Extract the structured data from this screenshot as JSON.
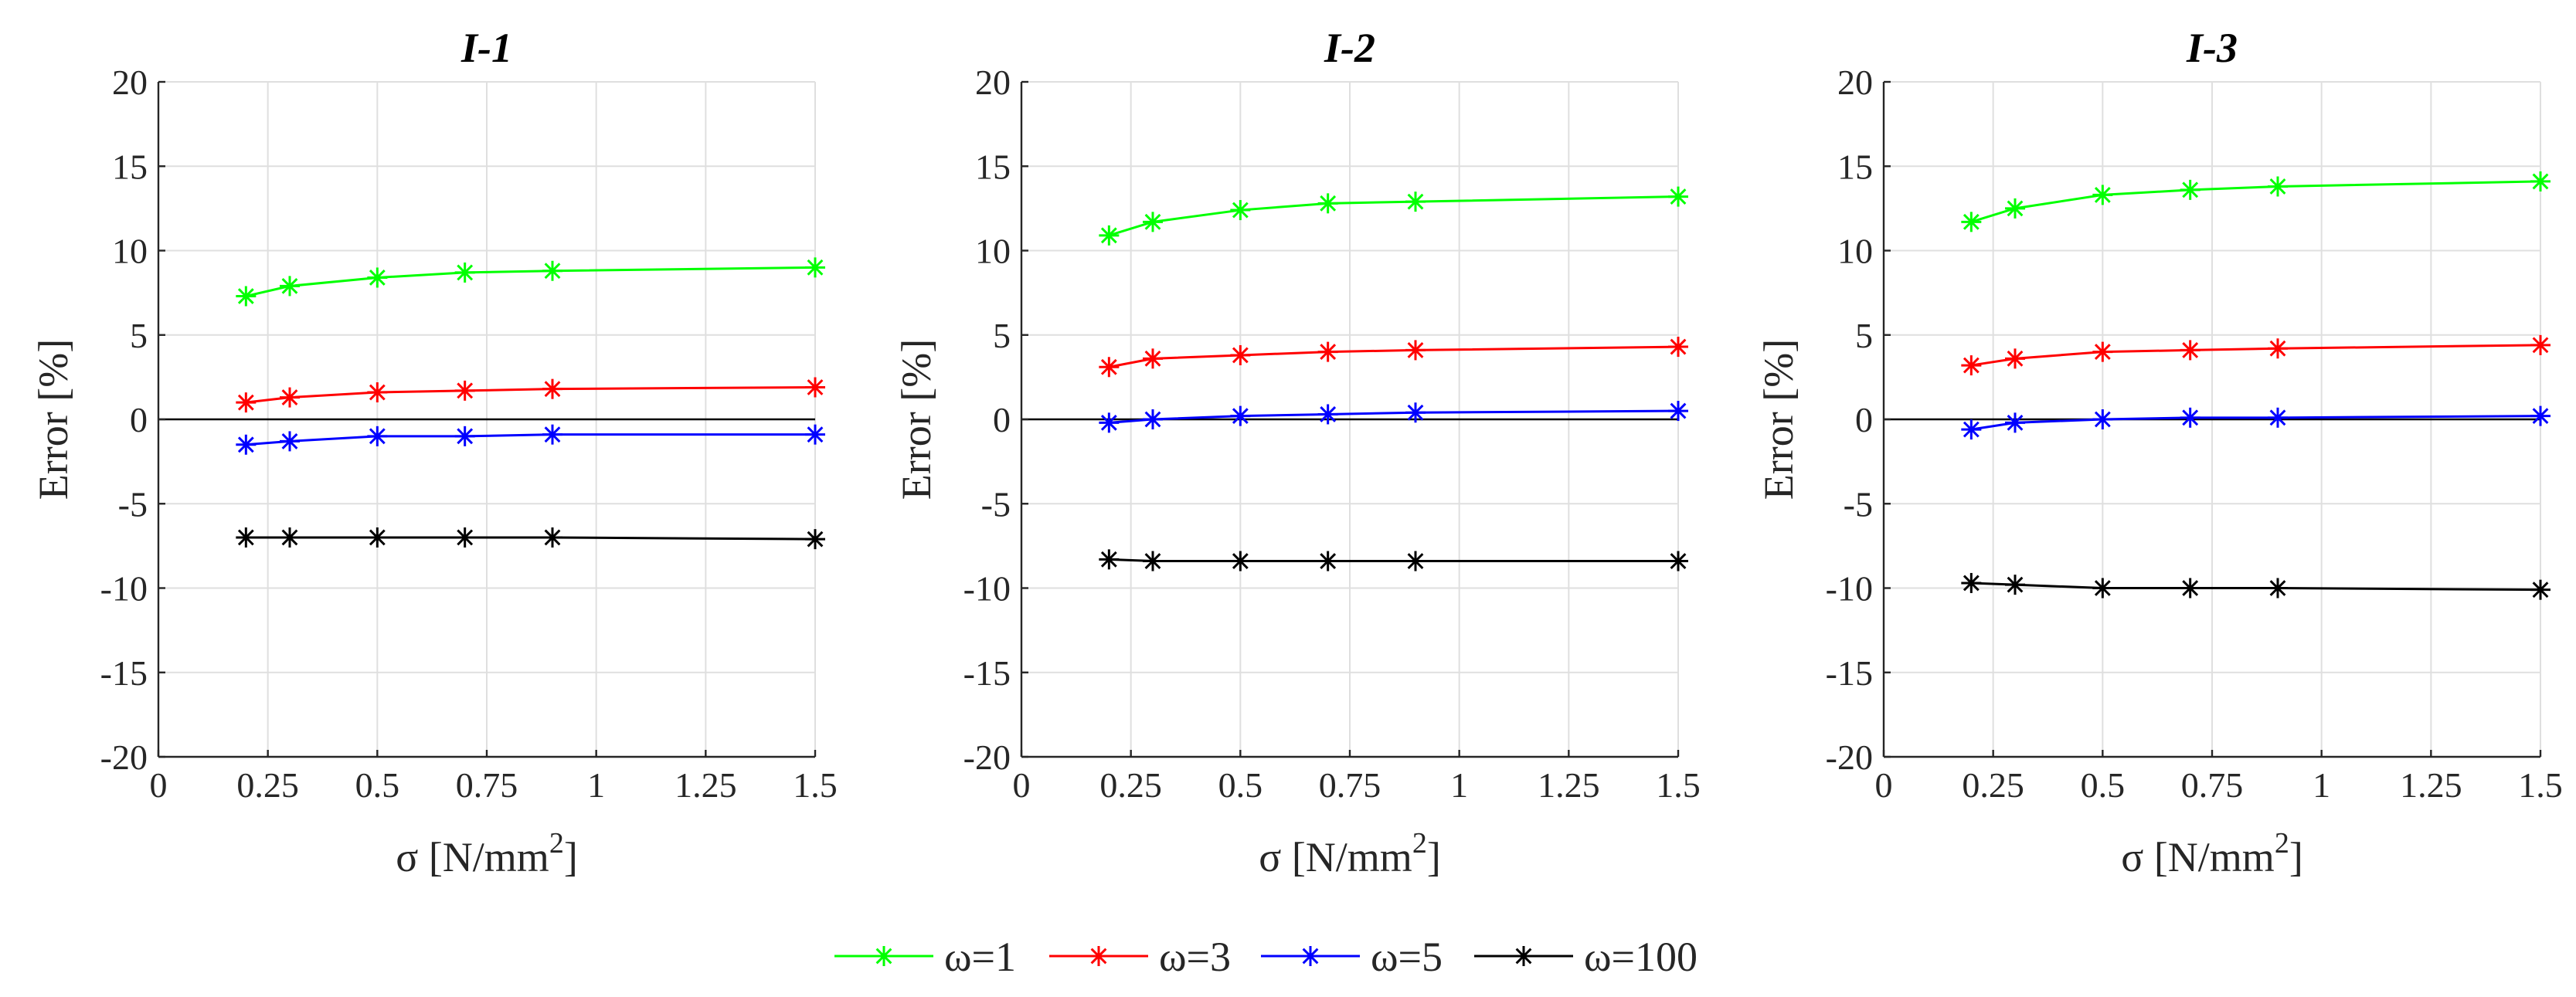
{
  "chart_data": [
    {
      "type": "line",
      "title": "I-1",
      "xlabel": "σ [N/mm2]",
      "ylabel": "Error [%]",
      "xlim": [
        0,
        1.5
      ],
      "ylim": [
        -20,
        20
      ],
      "xticks": [
        0,
        0.25,
        0.5,
        0.75,
        1,
        1.25,
        1.5
      ],
      "xtick_labels": [
        "0",
        "0.25",
        "0.5",
        "0.75",
        "1",
        "1.25",
        "1.5"
      ],
      "yticks": [
        -20,
        -15,
        -10,
        -5,
        0,
        5,
        10,
        15,
        20
      ],
      "ytick_labels": [
        "-20",
        "-15",
        "-10",
        "-5",
        "0",
        "5",
        "10",
        "15",
        "20"
      ],
      "grid": true,
      "x": [
        0.2,
        0.3,
        0.5,
        0.7,
        0.9,
        1.5
      ],
      "series": [
        {
          "name": "ω=1",
          "color": "#00ff00",
          "values": [
            7.3,
            7.9,
            8.4,
            8.7,
            8.8,
            9.0
          ]
        },
        {
          "name": "ω=3",
          "color": "#ff0000",
          "values": [
            1.0,
            1.3,
            1.6,
            1.7,
            1.8,
            1.9
          ]
        },
        {
          "name": "ω=5",
          "color": "#0000ff",
          "values": [
            -1.5,
            -1.3,
            -1.0,
            -1.0,
            -0.9,
            -0.9
          ]
        },
        {
          "name": "ω=100",
          "color": "#000000",
          "values": [
            -7.0,
            -7.0,
            -7.0,
            -7.0,
            -7.0,
            -7.1
          ]
        }
      ]
    },
    {
      "type": "line",
      "title": "I-2",
      "xlabel": "σ [N/mm2]",
      "ylabel": "Error [%]",
      "xlim": [
        0,
        1.5
      ],
      "ylim": [
        -20,
        20
      ],
      "xticks": [
        0,
        0.25,
        0.5,
        0.75,
        1,
        1.25,
        1.5
      ],
      "xtick_labels": [
        "0",
        "0.25",
        "0.5",
        "0.75",
        "1",
        "1.25",
        "1.5"
      ],
      "yticks": [
        -20,
        -15,
        -10,
        -5,
        0,
        5,
        10,
        15,
        20
      ],
      "ytick_labels": [
        "-20",
        "-15",
        "-10",
        "-5",
        "0",
        "5",
        "10",
        "15",
        "20"
      ],
      "grid": true,
      "x": [
        0.2,
        0.3,
        0.5,
        0.7,
        0.9,
        1.5
      ],
      "series": [
        {
          "name": "ω=1",
          "color": "#00ff00",
          "values": [
            10.9,
            11.7,
            12.4,
            12.8,
            12.9,
            13.2
          ]
        },
        {
          "name": "ω=3",
          "color": "#ff0000",
          "values": [
            3.1,
            3.6,
            3.8,
            4.0,
            4.1,
            4.3
          ]
        },
        {
          "name": "ω=5",
          "color": "#0000ff",
          "values": [
            -0.2,
            0.0,
            0.2,
            0.3,
            0.4,
            0.5
          ]
        },
        {
          "name": "ω=100",
          "color": "#000000",
          "values": [
            -8.3,
            -8.4,
            -8.4,
            -8.4,
            -8.4,
            -8.4
          ]
        }
      ]
    },
    {
      "type": "line",
      "title": "I-3",
      "xlabel": "σ [N/mm2]",
      "ylabel": "Error [%]",
      "xlim": [
        0,
        1.5
      ],
      "ylim": [
        -20,
        20
      ],
      "xticks": [
        0,
        0.25,
        0.5,
        0.75,
        1,
        1.25,
        1.5
      ],
      "xtick_labels": [
        "0",
        "0.25",
        "0.5",
        "0.75",
        "1",
        "1.25",
        "1.5"
      ],
      "yticks": [
        -20,
        -15,
        -10,
        -5,
        0,
        5,
        10,
        15,
        20
      ],
      "ytick_labels": [
        "-20",
        "-15",
        "-10",
        "-5",
        "0",
        "5",
        "10",
        "15",
        "20"
      ],
      "grid": true,
      "x": [
        0.2,
        0.3,
        0.5,
        0.7,
        0.9,
        1.5
      ],
      "series": [
        {
          "name": "ω=1",
          "color": "#00ff00",
          "values": [
            11.7,
            12.5,
            13.3,
            13.6,
            13.8,
            14.1
          ]
        },
        {
          "name": "ω=3",
          "color": "#ff0000",
          "values": [
            3.2,
            3.6,
            4.0,
            4.1,
            4.2,
            4.4
          ]
        },
        {
          "name": "ω=5",
          "color": "#0000ff",
          "values": [
            -0.6,
            -0.2,
            0.0,
            0.1,
            0.1,
            0.2
          ]
        },
        {
          "name": "ω=100",
          "color": "#000000",
          "values": [
            -9.7,
            -9.8,
            -10.0,
            -10.0,
            -10.0,
            -10.1
          ]
        }
      ]
    }
  ],
  "legend": {
    "position": "bottom-center",
    "entries": [
      {
        "label": "ω=1",
        "color": "#00ff00"
      },
      {
        "label": "ω=3",
        "color": "#ff0000"
      },
      {
        "label": "ω=5",
        "color": "#0000ff"
      },
      {
        "label": "ω=100",
        "color": "#000000"
      }
    ]
  }
}
